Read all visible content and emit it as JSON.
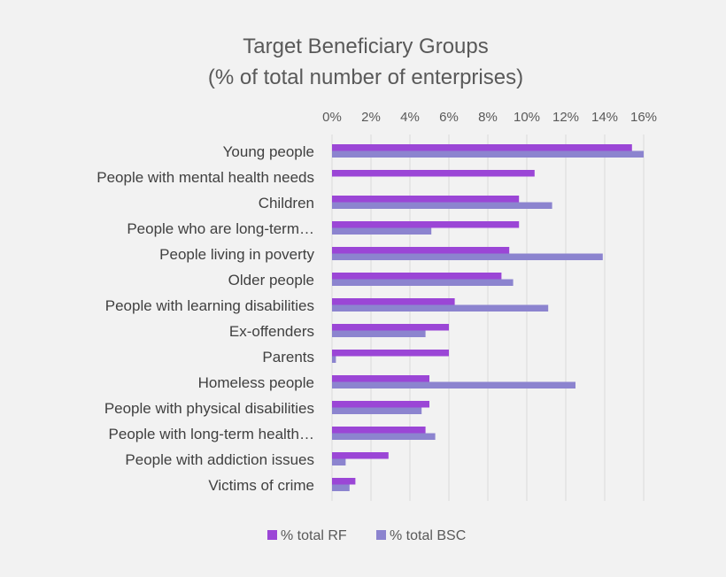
{
  "chart_data": {
    "type": "bar",
    "orientation": "horizontal",
    "title": "Target Beneficiary Groups",
    "subtitle": "(% of total number of enterprises)",
    "categories": [
      "Young people",
      "People with mental health needs",
      "Children",
      "People who are long-term…",
      "People living in poverty",
      "Older people",
      "People with learning disabilities",
      "Ex-offenders",
      "Parents",
      "Homeless people",
      "People with physical disabilities",
      "People with long-term health…",
      "People with addiction issues",
      "Victims of crime"
    ],
    "series": [
      {
        "name": "% total RF",
        "color": "#9b46d6",
        "values": [
          15.4,
          10.4,
          9.6,
          9.6,
          9.1,
          8.7,
          6.3,
          6.0,
          6.0,
          5.0,
          5.0,
          4.8,
          2.9,
          1.2
        ]
      },
      {
        "name": "% total BSC",
        "color": "#8c84cf",
        "values": [
          16.0,
          null,
          11.3,
          5.1,
          13.9,
          9.3,
          11.1,
          4.8,
          0.2,
          12.5,
          4.6,
          5.3,
          0.7,
          0.9
        ]
      }
    ],
    "xlim": [
      0,
      16
    ],
    "xticks": [
      "0%",
      "2%",
      "4%",
      "6%",
      "8%",
      "10%",
      "12%",
      "14%",
      "16%"
    ],
    "grid": true,
    "legend_position": "bottom"
  }
}
